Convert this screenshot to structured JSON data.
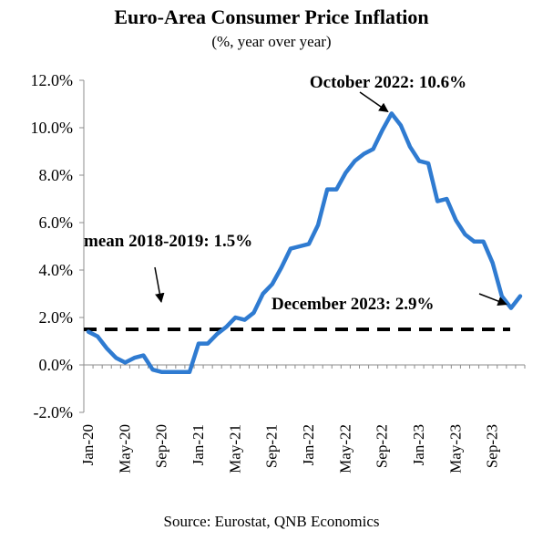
{
  "chart_data": {
    "type": "line",
    "title": "Euro-Area Consumer Price Inflation",
    "subtitle": "(%, year over year)",
    "source": "Source: Eurostat, QNB Economics",
    "ylim": [
      -2.0,
      12.0
    ],
    "yticks": [
      "12.0%",
      "10.0%",
      "8.0%",
      "6.0%",
      "4.0%",
      "2.0%",
      "0.0%",
      "-2.0%"
    ],
    "ytick_values": [
      12,
      10,
      8,
      6,
      4,
      2,
      0,
      -2
    ],
    "xtick_labels": [
      "Jan-20",
      "May-20",
      "Sep-20",
      "Jan-21",
      "May-21",
      "Sep-21",
      "Jan-22",
      "May-22",
      "Sep-22",
      "Jan-23",
      "May-23",
      "Sep-23"
    ],
    "xtick_index": [
      0,
      4,
      8,
      12,
      16,
      20,
      24,
      28,
      32,
      36,
      40,
      44
    ],
    "series": [
      {
        "values": [
          1.4,
          1.2,
          0.7,
          0.3,
          0.1,
          0.3,
          0.4,
          -0.2,
          -0.3,
          -0.3,
          -0.3,
          -0.3,
          0.9,
          0.9,
          1.3,
          1.6,
          2.0,
          1.9,
          2.2,
          3.0,
          3.4,
          4.1,
          4.9,
          5.0,
          5.1,
          5.9,
          7.4,
          7.4,
          8.1,
          8.6,
          8.9,
          9.1,
          9.9,
          10.6,
          10.1,
          9.2,
          8.6,
          8.5,
          6.9,
          7.0,
          6.1,
          5.5,
          5.2,
          5.2,
          4.3,
          2.9,
          2.4,
          2.9
        ],
        "color": "#2F7BD1"
      },
      {
        "name": "mean 2018-2019: 1.5%",
        "values": [
          1.5
        ],
        "style": "dashed",
        "color": "#000000"
      }
    ],
    "annotations": [
      {
        "text": "October 2022: 10.6%",
        "point_index": 33
      },
      {
        "text": "mean 2018-2019: 1.5%"
      },
      {
        "text": "December 2023: 2.9%",
        "point_index": 46
      }
    ],
    "grid": false
  }
}
